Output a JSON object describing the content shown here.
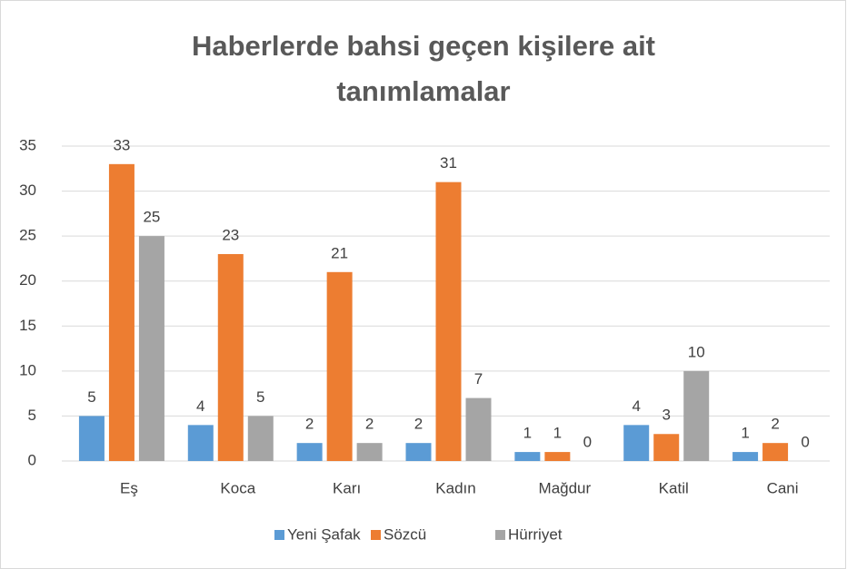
{
  "chart_data": {
    "type": "bar",
    "title": "Haberlerde bahsi geçen kişilere ait tanımlamalar",
    "categories": [
      "Eş",
      "Koca",
      "Karı",
      "Kadın",
      "Mağdur",
      "Katil",
      "Cani"
    ],
    "series": [
      {
        "name": "Yeni Şafak",
        "color": "#5b9bd5",
        "values": [
          5,
          4,
          2,
          2,
          1,
          4,
          1
        ]
      },
      {
        "name": "Sözcü",
        "color": "#ed7d31",
        "values": [
          33,
          23,
          21,
          31,
          1,
          3,
          2
        ]
      },
      {
        "name": "Hürriyet",
        "color": "#a5a5a5",
        "values": [
          25,
          5,
          2,
          7,
          0,
          10,
          0
        ]
      }
    ],
    "ylim": [
      0,
      35
    ],
    "yticks": [
      0,
      5,
      10,
      15,
      20,
      25,
      30,
      35
    ],
    "grid": true,
    "legend": "bottom"
  }
}
